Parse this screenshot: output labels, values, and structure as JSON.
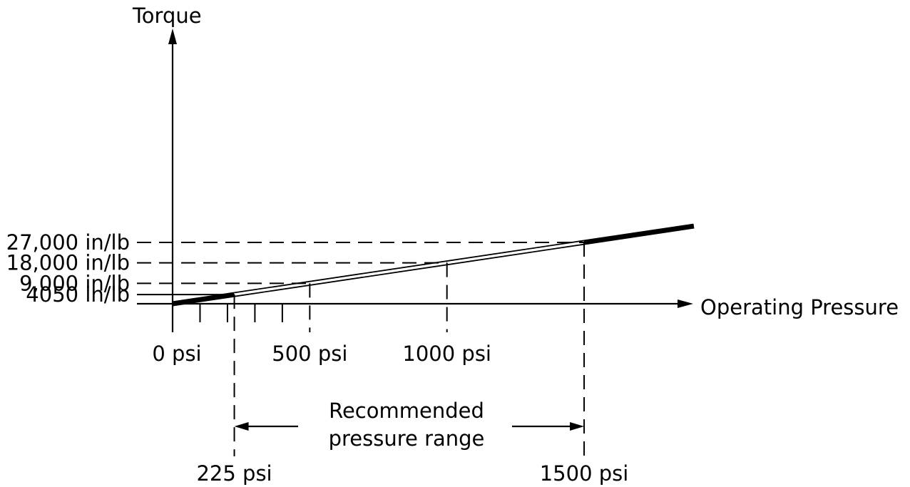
{
  "chart_data": {
    "type": "line",
    "xlabel": "Operating Pressure",
    "ylabel": "Torque",
    "x_units": "psi",
    "y_units": "in/lb",
    "xlim": [
      0,
      1900
    ],
    "ylim": [
      0,
      34000
    ],
    "series": [
      {
        "x": [
          0,
          1900
        ],
        "y": [
          0,
          34200
        ]
      }
    ],
    "recommended_range": {
      "label_line1": "Recommended",
      "label_line2": "pressure range",
      "min": 225,
      "max": 1500
    },
    "reference_points": [
      {
        "x": 225,
        "y": 4050,
        "x_label": "225 psi",
        "y_label": "4050 in/lb",
        "line_style": "solid"
      },
      {
        "x": 500,
        "y": 9000,
        "x_label": "500 psi",
        "y_label": "9,000 in/lb",
        "line_style": "dashed"
      },
      {
        "x": 1000,
        "y": 18000,
        "x_label": "1000 psi",
        "y_label": "18,000 in/lb",
        "line_style": "dashed"
      },
      {
        "x": 1500,
        "y": 27000,
        "x_label": "1500 psi",
        "y_label": "27,000 in/lb",
        "line_style": "dashed"
      }
    ],
    "origin_label": "0 psi",
    "minor_ticks_x": [
      100,
      200,
      300,
      400
    ],
    "grid": false,
    "legend": "none"
  }
}
